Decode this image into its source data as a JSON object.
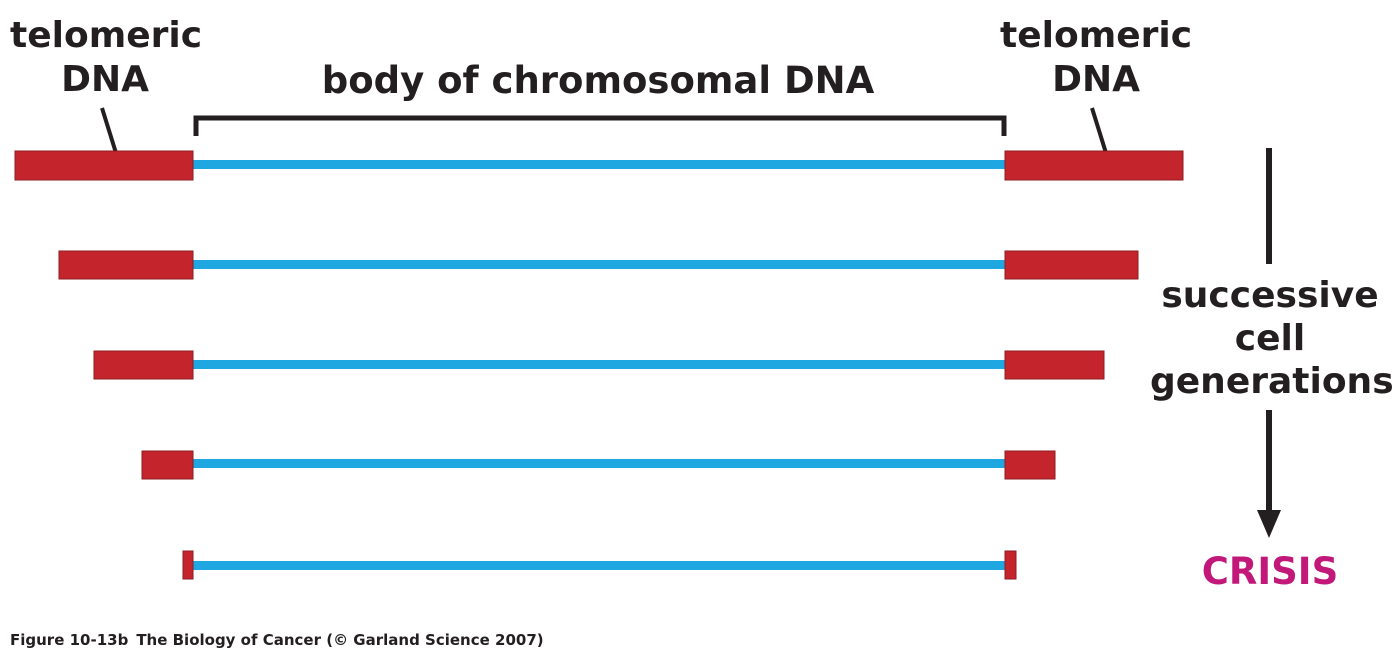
{
  "labels": {
    "telomeric_left": [
      "telomeric",
      "DNA"
    ],
    "telomeric_right": [
      "telomeric",
      "DNA"
    ],
    "body": "body of chromosomal DNA",
    "generations": [
      "successive",
      "cell",
      "generations"
    ],
    "crisis": "CRISIS"
  },
  "caption": {
    "figure": "Figure 10-13b",
    "source": "The Biology of Cancer (© Garland Science 2007)"
  },
  "colors": {
    "telomere": "#c4242b",
    "chromosome_body": "#1ea7e1",
    "crisis": "#c2187a",
    "ink": "#231f20"
  }
}
